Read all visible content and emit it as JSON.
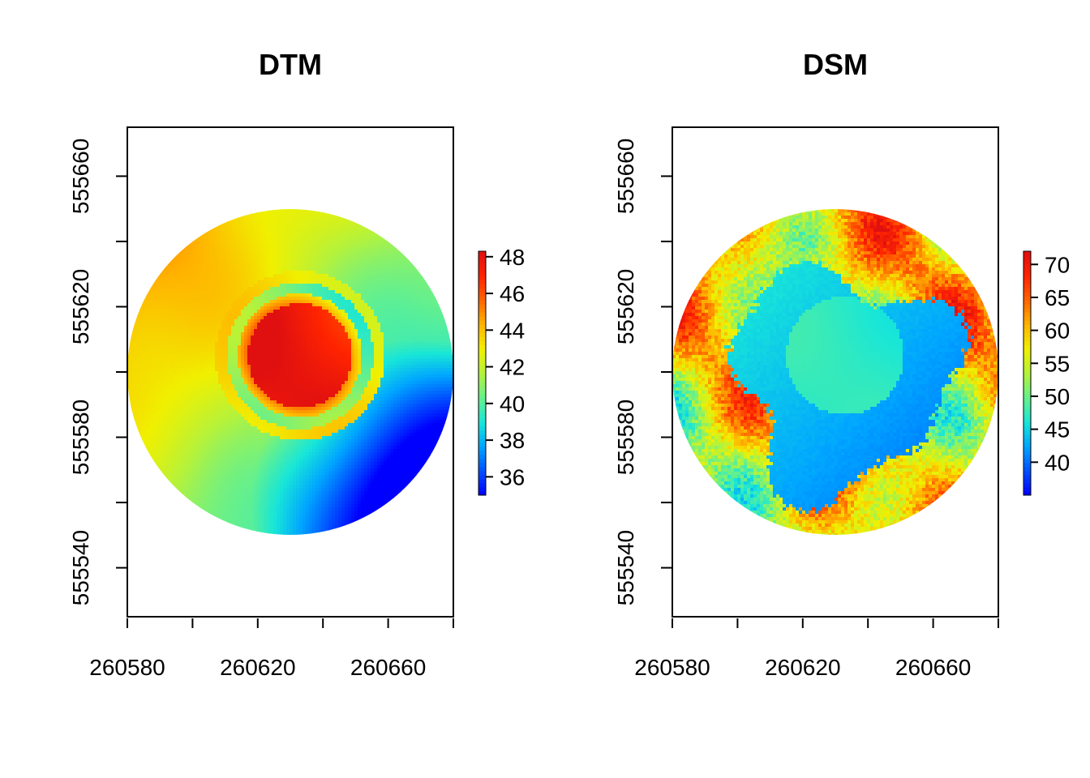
{
  "chart_data": [
    {
      "type": "heatmap",
      "title": "DTM",
      "xlabel": "",
      "ylabel": "",
      "xlim": [
        260580,
        260680
      ],
      "ylim": [
        555525,
        555675
      ],
      "x_ticks": [
        260580,
        260600,
        260620,
        260640,
        260660,
        260680
      ],
      "x_tick_labels": [
        "260580",
        "",
        "260620",
        "",
        "260660",
        ""
      ],
      "y_ticks": [
        555540,
        555560,
        555580,
        555600,
        555620,
        555640,
        555660
      ],
      "y_tick_labels": [
        "555540",
        "",
        "555580",
        "",
        "555620",
        "",
        "555660"
      ],
      "raster_extent": {
        "center": [
          260630,
          555600
        ],
        "radius": 50
      },
      "value_range": [
        35,
        48.3
      ],
      "colorbar_ticks": [
        36,
        38,
        40,
        42,
        44,
        46,
        48
      ],
      "colorbar_tick_labels": [
        "36",
        "38",
        "40",
        "42",
        "44",
        "46",
        "48"
      ],
      "colormap": [
        "#0000ff",
        "#0050ff",
        "#00a5ff",
        "#18e6d8",
        "#66f08c",
        "#b4f23c",
        "#f0f000",
        "#ffb400",
        "#ff6400",
        "#ff2400",
        "#e01010"
      ],
      "features": [
        {
          "kind": "mound",
          "center": [
            260633,
            555605
          ],
          "radius": 17,
          "value": 47.5
        },
        {
          "kind": "ditch-ring",
          "center": [
            260633,
            555605
          ],
          "radius": 22,
          "value": 43.5
        },
        {
          "kind": "low-corner",
          "center": [
            260665,
            555565
          ],
          "value": 35
        }
      ]
    },
    {
      "type": "heatmap",
      "title": "DSM",
      "xlabel": "",
      "ylabel": "",
      "xlim": [
        260580,
        260680
      ],
      "ylim": [
        555525,
        555675
      ],
      "x_ticks": [
        260580,
        260600,
        260620,
        260640,
        260660,
        260680
      ],
      "x_tick_labels": [
        "260580",
        "",
        "260620",
        "",
        "260660",
        ""
      ],
      "y_ticks": [
        555540,
        555560,
        555580,
        555600,
        555620,
        555640,
        555660
      ],
      "y_tick_labels": [
        "555540",
        "",
        "555580",
        "",
        "555620",
        "",
        "555660"
      ],
      "raster_extent": {
        "center": [
          260630,
          555600
        ],
        "radius": 50
      },
      "value_range": [
        35,
        72
      ],
      "colorbar_ticks": [
        40,
        45,
        50,
        55,
        60,
        65,
        70
      ],
      "colorbar_tick_labels": [
        "40",
        "45",
        "50",
        "55",
        "60",
        "65",
        "70"
      ],
      "colormap": [
        "#0000ff",
        "#0050ff",
        "#00a5ff",
        "#18e6d8",
        "#66f08c",
        "#b4f23c",
        "#f0f000",
        "#ffb400",
        "#ff6400",
        "#ff2400",
        "#e01010"
      ],
      "features": [
        {
          "kind": "clearing",
          "center": [
            260632,
            555598
          ],
          "radius": 34,
          "value": 42
        },
        {
          "kind": "mound",
          "center": [
            260633,
            555605
          ],
          "radius": 17,
          "value": 47
        },
        {
          "kind": "tree-canopy-ring",
          "center": [
            260630,
            555600
          ],
          "value": 62
        }
      ]
    }
  ]
}
